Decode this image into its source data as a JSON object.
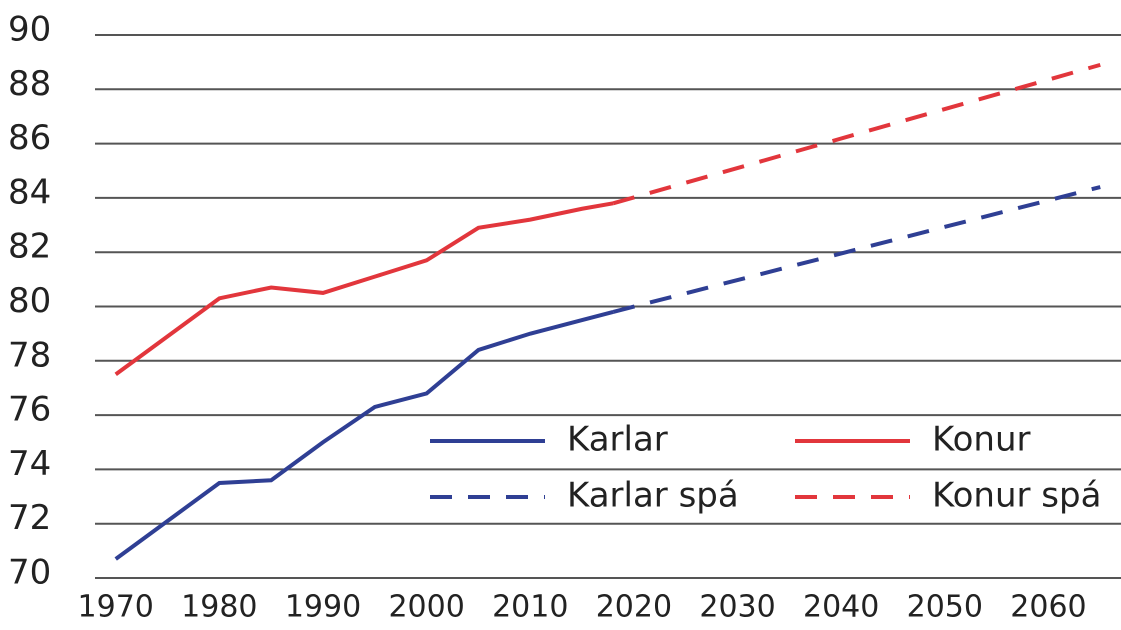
{
  "chart_data": {
    "type": "line",
    "series": [
      {
        "name": "Karlar",
        "color": "#2f3f94",
        "dashed": false,
        "x": [
          1970,
          1975,
          1980,
          1985,
          1990,
          1995,
          2000,
          2005,
          2010,
          2015,
          2018
        ],
        "values": [
          70.7,
          72.1,
          73.5,
          73.6,
          75.0,
          76.3,
          76.8,
          78.4,
          79.0,
          79.5,
          79.8
        ]
      },
      {
        "name": "Konur",
        "color": "#e2363c",
        "dashed": false,
        "x": [
          1970,
          1975,
          1980,
          1985,
          1990,
          1995,
          2000,
          2005,
          2010,
          2015,
          2018
        ],
        "values": [
          77.5,
          78.9,
          80.3,
          80.7,
          80.5,
          81.1,
          81.7,
          82.9,
          83.2,
          83.6,
          83.8
        ]
      },
      {
        "name": "Karlar spá",
        "color": "#2f3f94",
        "dashed": true,
        "x": [
          2018,
          2065
        ],
        "values": [
          79.8,
          84.4
        ]
      },
      {
        "name": "Konur spá",
        "color": "#e2363c",
        "dashed": true,
        "x": [
          2018,
          2065
        ],
        "values": [
          83.8,
          88.9
        ]
      }
    ],
    "xlim": [
      1968,
      2067
    ],
    "xticks": [
      1970,
      1980,
      1990,
      2000,
      2010,
      2020,
      2030,
      2040,
      2050,
      2060
    ],
    "ylim": [
      70,
      90
    ],
    "yticks": [
      70,
      72,
      74,
      76,
      78,
      80,
      82,
      84,
      86,
      88,
      90
    ],
    "grid": true,
    "legend": "lower right"
  }
}
